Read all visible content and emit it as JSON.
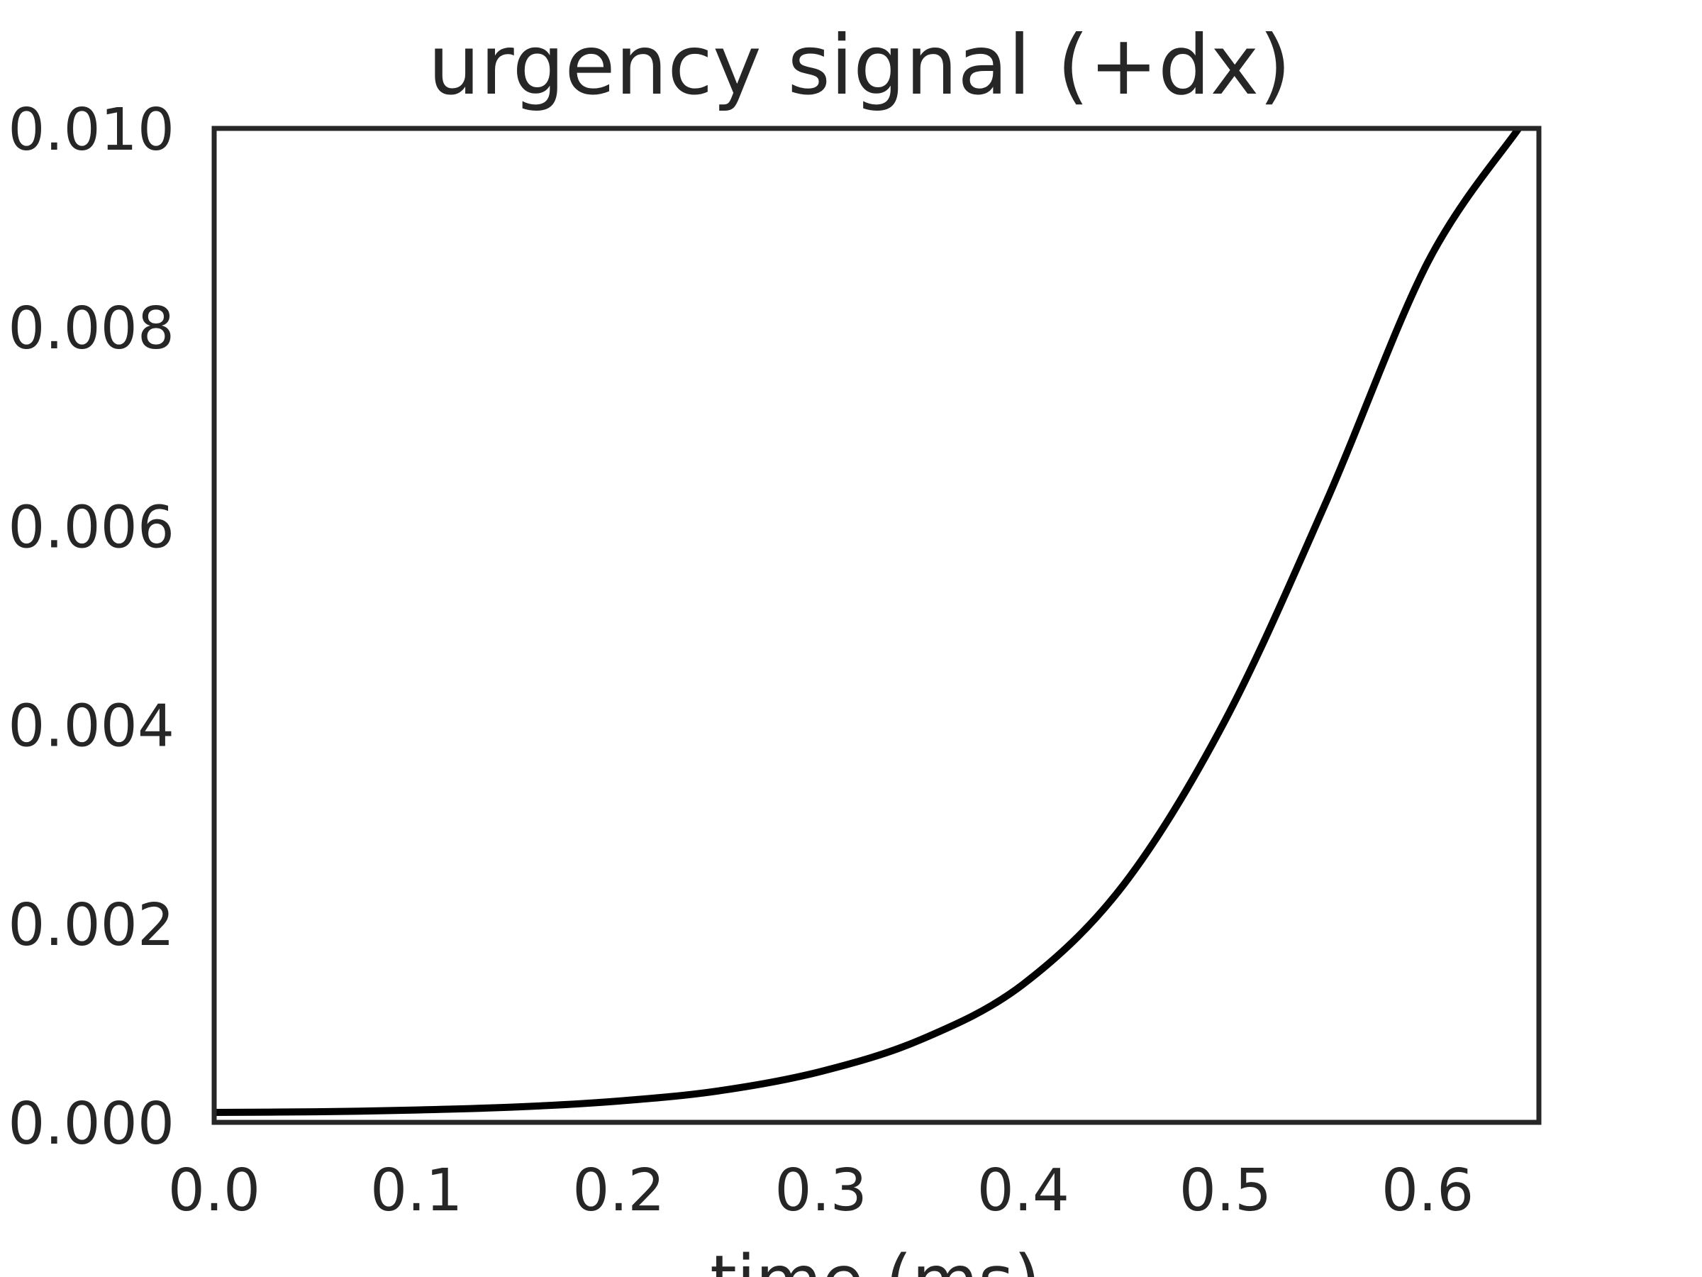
{
  "chart_data": {
    "type": "line",
    "title": "urgency signal (+dx)",
    "xlabel": "time (ms)",
    "ylabel": "",
    "xlim": [
      0.0,
      0.655
    ],
    "ylim": [
      0.0,
      0.01
    ],
    "xticks": [
      0.0,
      0.1,
      0.2,
      0.3,
      0.4,
      0.5,
      0.6
    ],
    "xtick_labels": [
      "0.0",
      "0.1",
      "0.2",
      "0.3",
      "0.4",
      "0.5",
      "0.6"
    ],
    "yticks": [
      0.0,
      0.002,
      0.004,
      0.006,
      0.008,
      0.01
    ],
    "ytick_labels": [
      "0.000",
      "0.002",
      "0.004",
      "0.006",
      "0.008",
      "0.010"
    ],
    "grid": false,
    "series": [
      {
        "color": "#000000",
        "x": [
          0.0,
          0.05,
          0.1,
          0.15,
          0.2,
          0.25,
          0.3,
          0.35,
          0.4,
          0.45,
          0.5,
          0.55,
          0.6,
          0.645
        ],
        "y": [
          0.0001,
          0.000106,
          0.000124,
          0.000155,
          0.000214,
          0.000318,
          0.000512,
          0.000837,
          0.00139,
          0.0024,
          0.00405,
          0.00625,
          0.00865,
          0.01
        ]
      }
    ]
  }
}
